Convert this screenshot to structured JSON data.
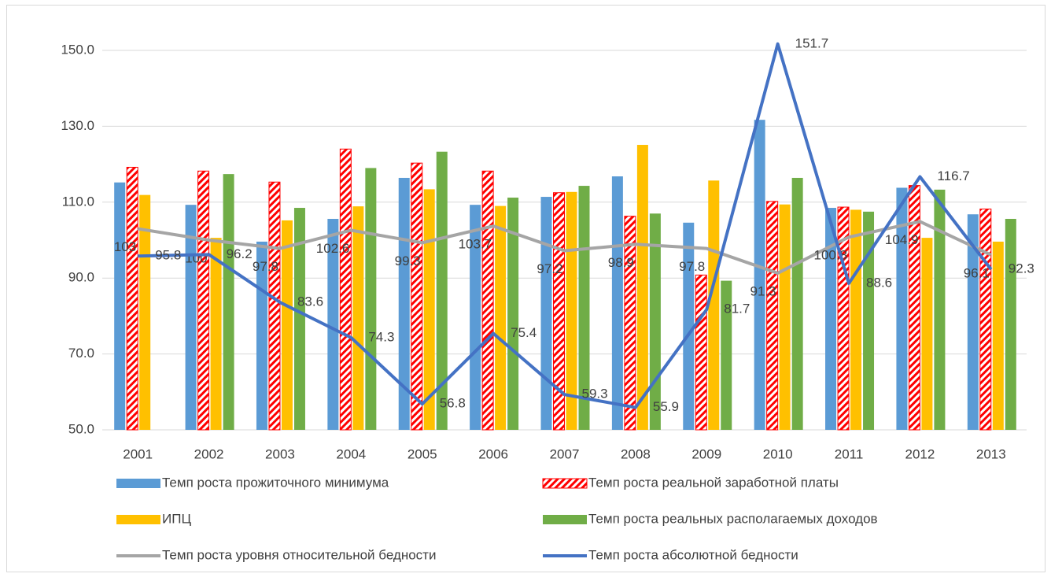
{
  "chart_data": {
    "type": "bar-line",
    "categories": [
      "2001",
      "2002",
      "2003",
      "2004",
      "2005",
      "2006",
      "2007",
      "2008",
      "2009",
      "2010",
      "2011",
      "2012",
      "2013"
    ],
    "ylim": [
      50,
      150
    ],
    "yticks": [
      {
        "value": 50,
        "label": "50.0"
      },
      {
        "value": 70,
        "label": "70.0"
      },
      {
        "value": 90,
        "label": "90.0"
      },
      {
        "value": 110,
        "label": "110.0"
      },
      {
        "value": 130,
        "label": "130.0"
      },
      {
        "value": 150,
        "label": "150.0"
      }
    ],
    "grid": true,
    "series": [
      {
        "name": "Темп роста прожиточного минимума",
        "kind": "bar",
        "color": "#5b9bd5",
        "values": [
          115.2,
          109.3,
          99.6,
          105.6,
          116.4,
          109.3,
          111.4,
          116.8,
          104.6,
          131.7,
          108.5,
          113.8,
          106.8
        ]
      },
      {
        "name": "Темп роста реальной заработной платы",
        "kind": "bar",
        "color": "#ff0000",
        "pattern": "diagonal-stripes",
        "values": [
          119.2,
          118.2,
          115.3,
          124.0,
          120.3,
          118.2,
          112.5,
          106.3,
          90.8,
          110.2,
          108.7,
          114.4,
          108.2
        ]
      },
      {
        "name": "ИПЦ",
        "kind": "bar",
        "color": "#ffc000",
        "values": [
          111.9,
          100.6,
          105.2,
          108.9,
          113.4,
          109.0,
          112.7,
          125.1,
          115.7,
          109.4,
          108.0,
          100.6,
          99.6
        ]
      },
      {
        "name": "Темп роста реальных располагаемых доходов",
        "kind": "bar",
        "color": "#70ad47",
        "values": [
          null,
          117.4,
          108.5,
          119.0,
          123.3,
          111.2,
          114.3,
          107.0,
          89.3,
          116.4,
          107.5,
          113.3,
          105.6
        ]
      },
      {
        "name": "Темп роста уровня относительной бедности",
        "kind": "line",
        "color": "#a5a5a5",
        "values": [
          103.0,
          100.0,
          97.8,
          102.6,
          99.3,
          103.7,
          97.2,
          98.9,
          97.8,
          91.3,
          100.8,
          104.9,
          96.1
        ]
      },
      {
        "name": "Темп роста абсолютной бедности",
        "kind": "line",
        "color": "#4472c4",
        "values": [
          95.8,
          96.2,
          83.6,
          74.3,
          56.8,
          75.4,
          59.3,
          55.9,
          81.7,
          151.7,
          88.6,
          116.7,
          92.3
        ]
      }
    ]
  }
}
